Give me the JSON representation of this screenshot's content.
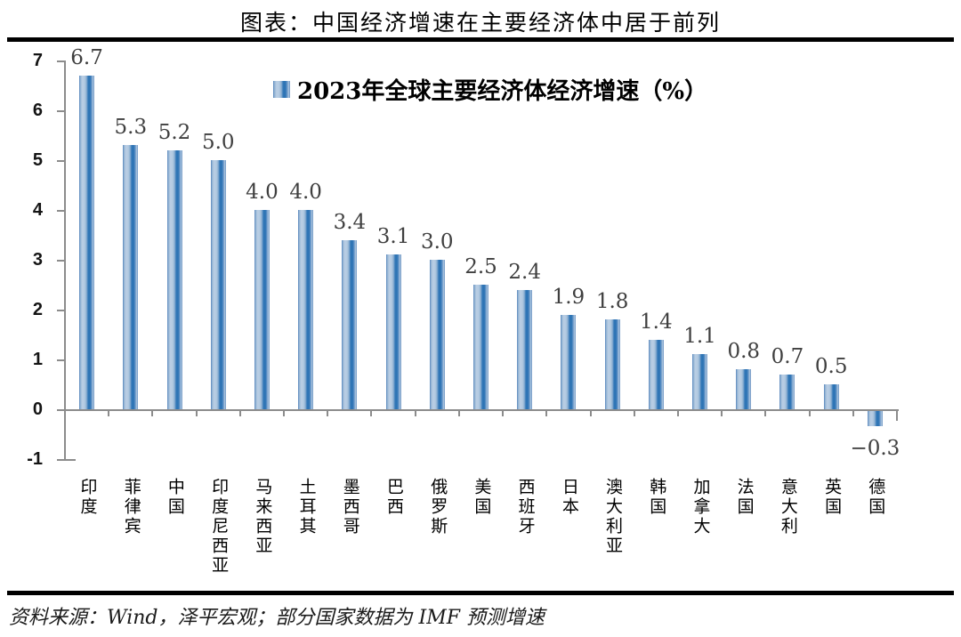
{
  "page": {
    "title": "图表：中国经济增速在主要经济体中居于前列",
    "footer": "资料来源：Wind，泽平宏观；部分国家数据为 IMF 预测增速"
  },
  "chart_data": {
    "type": "bar",
    "title": "2023年全球主要经济体经济增速（%）",
    "legend": [
      "2023年全球主要经济体经济增速（%）"
    ],
    "legend_position": "top-center",
    "legend_marker": "blue-gradient-square",
    "categories": [
      "印度",
      "菲律宾",
      "中国",
      "印度尼西亚",
      "马来西亚",
      "土耳其",
      "墨西哥",
      "巴西",
      "俄罗斯",
      "美国",
      "西班牙",
      "日本",
      "澳大利亚",
      "韩国",
      "加拿大",
      "法国",
      "意大利",
      "英国",
      "德国"
    ],
    "values": [
      6.7,
      5.3,
      5.2,
      5.0,
      4.0,
      4.0,
      3.4,
      3.1,
      3.0,
      2.5,
      2.4,
      1.9,
      1.8,
      1.4,
      1.1,
      0.8,
      0.7,
      0.5,
      -0.3
    ],
    "value_labels": [
      "6.7",
      "5.3",
      "5.2",
      "5.0",
      "4.0",
      "4.0",
      "3.4",
      "3.1",
      "3.0",
      "2.5",
      "2.4",
      "1.9",
      "1.8",
      "1.4",
      "1.1",
      "0.8",
      "0.7",
      "0.5",
      "−0.3"
    ],
    "xlabel": "",
    "ylabel": "",
    "ylim": [
      -1,
      7
    ],
    "yticks": [
      7,
      6,
      5,
      4,
      3,
      2,
      1,
      0,
      -1
    ],
    "ytick_labels": [
      "7",
      "6",
      "5",
      "4",
      "3",
      "2",
      "1",
      "0",
      "-1"
    ],
    "grid": false,
    "colors": {
      "bar_stripe": "#2e74b5",
      "bar_light": "#b6cbe1",
      "bar_edge": "#5d89bd",
      "axis": "#8c8c8c",
      "value_label": "#3f3f3f",
      "rule": "#000000"
    }
  }
}
